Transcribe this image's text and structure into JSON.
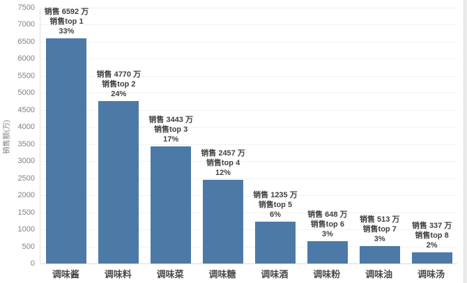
{
  "chart_data": {
    "type": "bar",
    "title": "",
    "xlabel": "",
    "ylabel": "销售额(万)",
    "ylim": [
      0,
      7500
    ],
    "ytick_step": 500,
    "ytick_labels": [
      "0",
      "500",
      "1000",
      "1500",
      "2000",
      "2500",
      "3000",
      "3500",
      "4000",
      "4500",
      "5000",
      "5500",
      "6000",
      "6500",
      "7000",
      "7500"
    ],
    "grid": "horizontal",
    "legend_position": "none",
    "bar_color": "#4d79a7",
    "categories": [
      "调味酱",
      "调味料",
      "调味菜",
      "调味糖",
      "调味酒",
      "调味粉",
      "调味油",
      "调味汤"
    ],
    "values": [
      6592,
      4770,
      3443,
      2457,
      1235,
      648,
      513,
      337
    ],
    "percent_labels": [
      "33%",
      "24%",
      "17%",
      "12%",
      "6%",
      "3%",
      "3%",
      "2%"
    ],
    "annotations": [
      {
        "lines": [
          "销售 6592 万",
          "销售top 1",
          "33%"
        ]
      },
      {
        "lines": [
          "销售 4770 万",
          "销售top 2",
          "24%"
        ]
      },
      {
        "lines": [
          "销售 3443 万",
          "销售top 3",
          "17%"
        ]
      },
      {
        "lines": [
          "销售 2457 万",
          "销售top 4",
          "12%"
        ]
      },
      {
        "lines": [
          "销售 1235 万",
          "销售top 5",
          "6%"
        ]
      },
      {
        "lines": [
          "销售 648 万",
          "销售top 6",
          "3%"
        ]
      },
      {
        "lines": [
          "销售 513 万",
          "销售top 7",
          "3%"
        ]
      },
      {
        "lines": [
          "销售 337 万",
          "销售top 8",
          "2%"
        ]
      }
    ]
  },
  "colors": {
    "gridline": "#f1f1f1",
    "axis_line": "#d9d9d9",
    "tick_text": "#7f7f7f",
    "annotation_text": "#404040",
    "category_text": "#4a4a4a",
    "background": "#ffffff"
  }
}
